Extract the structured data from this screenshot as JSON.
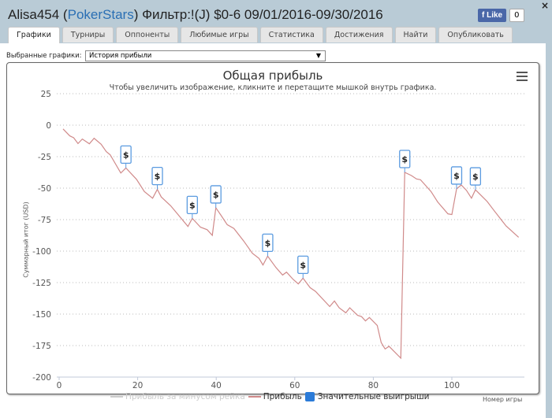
{
  "header": {
    "title_prefix": "Alisa454 (",
    "site": "PokerStars",
    "title_suffix": ") Фильтр:!(J) $0-6 09/01/2016-09/30/2016",
    "like_label": "Like",
    "like_count": "0",
    "close": "×"
  },
  "tabs": [
    "Графики",
    "Турниры",
    "Оппоненты",
    "Любимые игры",
    "Статистика",
    "Достижения",
    "Найти",
    "Опубликовать"
  ],
  "selector": {
    "label": "Выбранные графики:",
    "value": "История прибыли"
  },
  "colors": {
    "profit": "#d08a8a",
    "rake": "#cccccc",
    "marker": "#5b9be0"
  },
  "chart_data": {
    "type": "line",
    "title": "Общая прибыль",
    "subtitle": "Чтобы увеличить изображение, кликните и перетащите мышкой внутрь графика.",
    "xlabel": "Номер игры",
    "ylabel": "Суммарный итог (USD)",
    "xlim": [
      0,
      118
    ],
    "ylim": [
      -200,
      25
    ],
    "xticks": [
      0,
      20,
      40,
      60,
      80,
      100
    ],
    "yticks": [
      25,
      0,
      -25,
      -50,
      -75,
      -100,
      -125,
      -150,
      -175,
      -200
    ],
    "legend": [
      "Прибыль за минусом рейка",
      "Прибыль",
      "Значительные выигрыши"
    ],
    "series": [
      {
        "name": "Прибыль",
        "points": [
          [
            1,
            -3
          ],
          [
            2.7,
            -8.5
          ],
          [
            3.7,
            -10
          ],
          [
            4.8,
            -14.6
          ],
          [
            5.9,
            -11
          ],
          [
            7.7,
            -14.8
          ],
          [
            8.9,
            -10.4
          ],
          [
            10.7,
            -15.2
          ],
          [
            12,
            -21
          ],
          [
            13,
            -23.5
          ],
          [
            15.7,
            -38
          ],
          [
            17,
            -34
          ],
          [
            19.7,
            -43
          ],
          [
            21.7,
            -52.7
          ],
          [
            23.8,
            -58
          ],
          [
            25,
            -51
          ],
          [
            26,
            -57
          ],
          [
            28.4,
            -64
          ],
          [
            32.8,
            -80.4
          ],
          [
            33.9,
            -74
          ],
          [
            36,
            -81
          ],
          [
            37.7,
            -83
          ],
          [
            39,
            -87.5
          ],
          [
            39.9,
            -65.6
          ],
          [
            41.2,
            -71.5
          ],
          [
            42.8,
            -79
          ],
          [
            44.5,
            -82
          ],
          [
            47,
            -92
          ],
          [
            49.2,
            -101.7
          ],
          [
            50.9,
            -105.8
          ],
          [
            51.9,
            -111
          ],
          [
            53.1,
            -104
          ],
          [
            55.2,
            -113
          ],
          [
            56.9,
            -119
          ],
          [
            57.9,
            -116.7
          ],
          [
            59.6,
            -122.5
          ],
          [
            60.9,
            -126
          ],
          [
            62.1,
            -121.5
          ],
          [
            63.9,
            -129
          ],
          [
            65.3,
            -132
          ],
          [
            68.9,
            -144
          ],
          [
            70.1,
            -139.6
          ],
          [
            71.3,
            -145
          ],
          [
            73,
            -149
          ],
          [
            74,
            -145
          ],
          [
            76,
            -151
          ],
          [
            77,
            -152
          ],
          [
            78,
            -155.4
          ],
          [
            79,
            -152.7
          ],
          [
            81,
            -159
          ],
          [
            82,
            -172.5
          ],
          [
            83,
            -177.7
          ],
          [
            84,
            -175.6
          ],
          [
            87,
            -185
          ],
          [
            88,
            -37.5
          ],
          [
            89.7,
            -40
          ],
          [
            91,
            -42.7
          ],
          [
            92,
            -43.3
          ],
          [
            94.7,
            -52.7
          ],
          [
            96.4,
            -61
          ],
          [
            99,
            -70.4
          ],
          [
            100,
            -71
          ],
          [
            101.2,
            -50.6
          ],
          [
            102.4,
            -47.5
          ],
          [
            103.7,
            -51.7
          ],
          [
            105,
            -58
          ],
          [
            106,
            -51.3
          ],
          [
            109,
            -60.6
          ],
          [
            110.8,
            -68
          ],
          [
            113.8,
            -80
          ],
          [
            117,
            -89
          ]
        ]
      }
    ],
    "big_wins": [
      [
        17,
        -34
      ],
      [
        25,
        -51
      ],
      [
        33.9,
        -74
      ],
      [
        39.9,
        -65.6
      ],
      [
        53.1,
        -104
      ],
      [
        62.1,
        -121.5
      ],
      [
        88,
        -37.5
      ],
      [
        101.2,
        -50.6
      ],
      [
        106,
        -51.3
      ]
    ],
    "marker_label": "$"
  }
}
